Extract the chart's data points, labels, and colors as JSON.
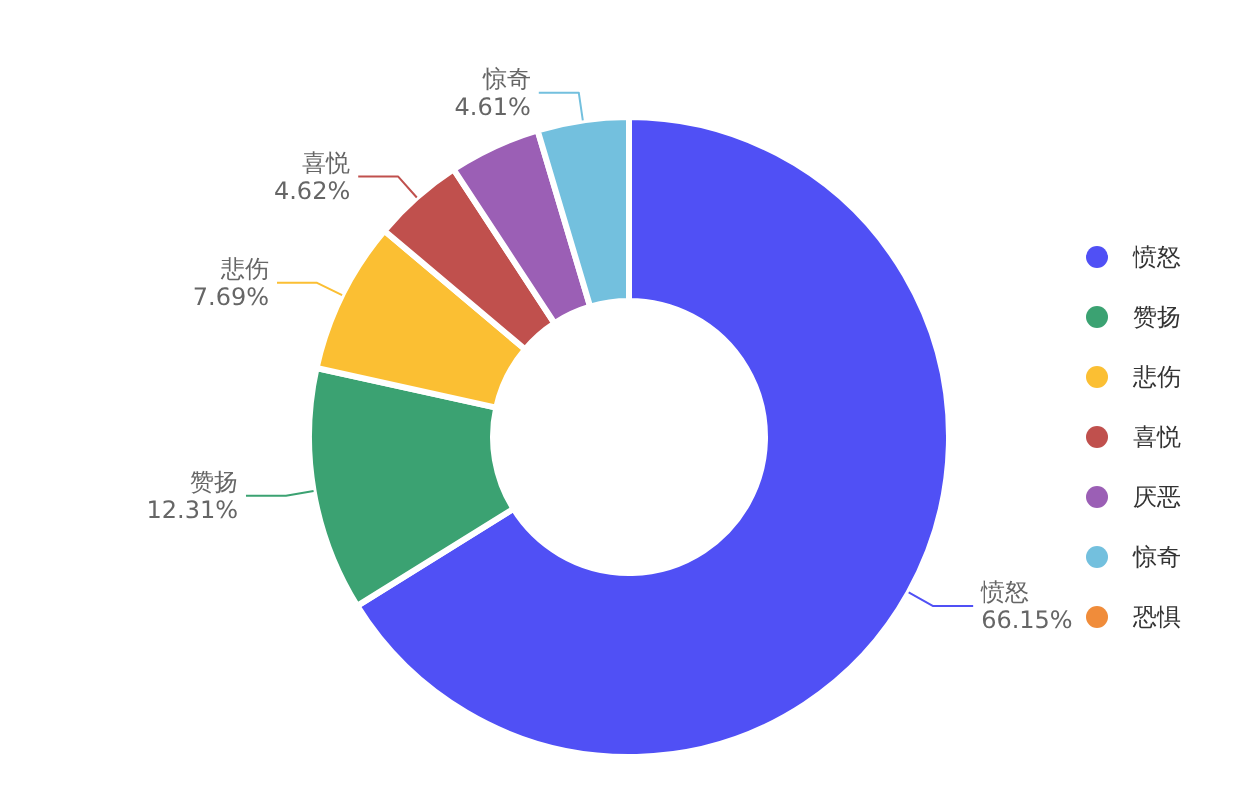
{
  "chart_data": {
    "type": "donut",
    "categories": [
      "愤怒",
      "赞扬",
      "悲伤",
      "喜悦",
      "厌恶",
      "惊奇",
      "恐惧"
    ],
    "values": [
      66.15,
      12.31,
      7.69,
      4.62,
      4.62,
      4.61,
      0
    ],
    "value_labels": [
      "66.15%",
      "12.31%",
      "7.69%",
      "4.62%",
      null,
      "4.61%",
      null
    ],
    "colors": [
      "#5050f5",
      "#3ba272",
      "#fbbf33",
      "#c0504d",
      "#9b5fb5",
      "#73c0de",
      "#f08c3a"
    ],
    "legend": "right"
  }
}
